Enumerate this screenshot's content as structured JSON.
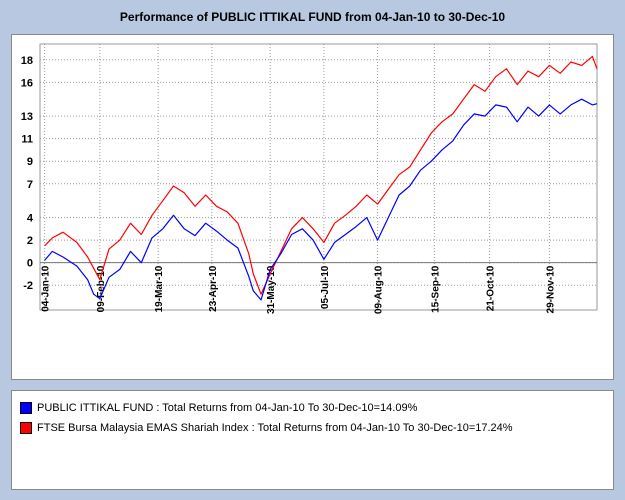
{
  "chart_data": {
    "type": "line",
    "title": "Performance of PUBLIC ITTIKAL FUND from 04-Jan-10 to 30-Dec-10",
    "xlabel": "",
    "ylabel": "",
    "y_ticks": [
      "18",
      "16",
      "13",
      "11",
      "9",
      "7",
      "4",
      "2",
      "0",
      "-2"
    ],
    "y_tick_values": [
      18,
      16,
      13,
      11,
      9,
      7,
      4,
      2,
      0,
      -2
    ],
    "ylim": [
      -4.2,
      19.4
    ],
    "x_ticks": [
      "04-Jan-10",
      "09-Feb-10",
      "19-Mar-10",
      "23-Apr-10",
      "31-May-10",
      "05-Jul-10",
      "09-Aug-10",
      "15-Sep-10",
      "21-Oct-10",
      "29-Nov-10"
    ],
    "x_tick_values": [
      "2010-01-04",
      "2010-02-09",
      "2010-03-19",
      "2010-04-23",
      "2010-05-31",
      "2010-07-05",
      "2010-08-09",
      "2010-09-15",
      "2010-10-21",
      "2010-11-29"
    ],
    "xlim": [
      "2010-01-01",
      "2010-12-30"
    ],
    "grid": true,
    "legend_position": "bottom",
    "series": [
      {
        "name": "PUBLIC ITTIKAL FUND : Total Returns from 04-Jan-10 To 30-Dec-10=14.09%",
        "color": "#0000ff",
        "x": [
          "2010-01-04",
          "2010-01-09",
          "2010-01-16",
          "2010-01-25",
          "2010-02-01",
          "2010-02-05",
          "2010-02-09",
          "2010-02-15",
          "2010-02-22",
          "2010-03-01",
          "2010-03-08",
          "2010-03-15",
          "2010-03-22",
          "2010-03-29",
          "2010-04-05",
          "2010-04-12",
          "2010-04-19",
          "2010-04-26",
          "2010-05-03",
          "2010-05-10",
          "2010-05-17",
          "2010-05-20",
          "2010-05-25",
          "2010-05-31",
          "2010-06-07",
          "2010-06-14",
          "2010-06-21",
          "2010-06-28",
          "2010-07-05",
          "2010-07-12",
          "2010-07-19",
          "2010-07-26",
          "2010-08-02",
          "2010-08-09",
          "2010-08-16",
          "2010-08-23",
          "2010-08-30",
          "2010-09-06",
          "2010-09-13",
          "2010-09-20",
          "2010-09-27",
          "2010-10-04",
          "2010-10-11",
          "2010-10-18",
          "2010-10-25",
          "2010-11-01",
          "2010-11-08",
          "2010-11-15",
          "2010-11-22",
          "2010-11-29",
          "2010-12-06",
          "2010-12-13",
          "2010-12-20",
          "2010-12-27",
          "2010-12-30"
        ],
        "values": [
          0.2,
          1.0,
          0.5,
          -0.3,
          -1.5,
          -2.8,
          -3.2,
          -1.3,
          -0.6,
          1.0,
          0.0,
          2.2,
          3.0,
          4.2,
          3.0,
          2.4,
          3.5,
          2.8,
          2.0,
          1.3,
          -1.2,
          -2.5,
          -3.3,
          -0.6,
          0.8,
          2.5,
          3.0,
          2.0,
          0.3,
          1.8,
          2.5,
          3.2,
          4.0,
          2.0,
          4.0,
          6.0,
          6.8,
          8.2,
          9.0,
          10.0,
          10.8,
          12.2,
          13.2,
          13.0,
          14.0,
          13.8,
          12.5,
          13.8,
          13.0,
          14.0,
          13.2,
          14.0,
          14.5,
          14.0,
          14.1
        ]
      },
      {
        "name": "FTSE Bursa Malaysia EMAS Shariah Index : Total Returns from 04-Jan-10 To 30-Dec-10=17.24%",
        "color": "#ff0000",
        "x": [
          "2010-01-04",
          "2010-01-09",
          "2010-01-16",
          "2010-01-25",
          "2010-02-01",
          "2010-02-05",
          "2010-02-09",
          "2010-02-15",
          "2010-02-22",
          "2010-03-01",
          "2010-03-08",
          "2010-03-15",
          "2010-03-22",
          "2010-03-29",
          "2010-04-05",
          "2010-04-12",
          "2010-04-19",
          "2010-04-26",
          "2010-05-03",
          "2010-05-10",
          "2010-05-17",
          "2010-05-20",
          "2010-05-25",
          "2010-05-31",
          "2010-06-07",
          "2010-06-14",
          "2010-06-21",
          "2010-06-28",
          "2010-07-05",
          "2010-07-12",
          "2010-07-19",
          "2010-07-26",
          "2010-08-02",
          "2010-08-09",
          "2010-08-16",
          "2010-08-23",
          "2010-08-30",
          "2010-09-06",
          "2010-09-13",
          "2010-09-20",
          "2010-09-27",
          "2010-10-04",
          "2010-10-11",
          "2010-10-18",
          "2010-10-25",
          "2010-11-01",
          "2010-11-08",
          "2010-11-15",
          "2010-11-22",
          "2010-11-29",
          "2010-12-06",
          "2010-12-13",
          "2010-12-20",
          "2010-12-27",
          "2010-12-30"
        ],
        "values": [
          1.5,
          2.2,
          2.7,
          1.8,
          0.5,
          -0.5,
          -1.5,
          1.2,
          2.0,
          3.5,
          2.5,
          4.2,
          5.5,
          6.8,
          6.2,
          5.0,
          6.0,
          5.0,
          4.5,
          3.5,
          0.8,
          -1.0,
          -2.8,
          -1.0,
          1.0,
          3.0,
          4.0,
          3.0,
          1.8,
          3.5,
          4.2,
          5.0,
          6.0,
          5.2,
          6.5,
          7.8,
          8.5,
          10.0,
          11.5,
          12.5,
          13.2,
          14.5,
          15.8,
          15.2,
          16.5,
          17.2,
          15.8,
          17.0,
          16.5,
          17.5,
          16.8,
          17.8,
          17.5,
          18.3,
          17.2
        ]
      }
    ]
  }
}
